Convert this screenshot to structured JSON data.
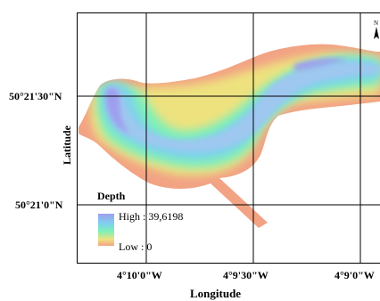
{
  "map": {
    "axes": {
      "y_title": "Latitude",
      "x_title": "Longitude",
      "lat_ticks": [
        "50°21'30\"N",
        "50°21'0\"N"
      ],
      "lon_ticks": [
        "4°10'0\"W",
        "4°9'30\"W",
        "4°9'0\"W"
      ]
    },
    "legend": {
      "title": "Depth",
      "high_label": "High : 39,6198",
      "low_label": "Low : 0",
      "high_value": 39.6198,
      "low_value": 0,
      "colors": [
        "#9e9eef",
        "#7fd0ee",
        "#7ff0b8",
        "#eee27f",
        "#f2a384"
      ]
    },
    "north_arrow": {
      "label": "N"
    }
  }
}
